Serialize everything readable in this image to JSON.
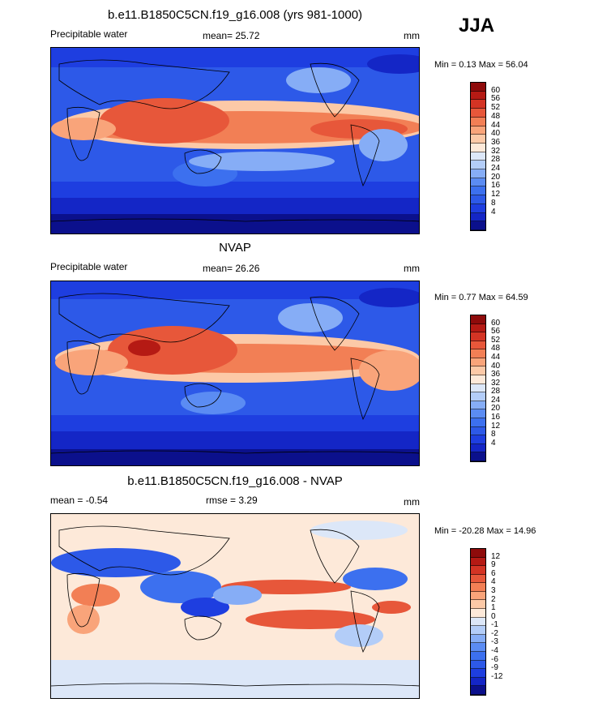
{
  "season": "JJA",
  "colors": {
    "panel1_scale": [
      "#0b108c",
      "#1426c6",
      "#1e3ee0",
      "#2d59e8",
      "#3c70ef",
      "#5b8cf3",
      "#86adf6",
      "#b3cdf8",
      "#dce7f8",
      "#fde9d9",
      "#fcc9a7",
      "#f9a47a",
      "#f27f55",
      "#e7573a",
      "#d43424",
      "#b51a14",
      "#8e0b0b"
    ],
    "panel3_scale": [
      "#0b108c",
      "#1426c6",
      "#1e3ee0",
      "#2d59e8",
      "#3c70ef",
      "#5b8cf3",
      "#86adf6",
      "#b3cdf8",
      "#dce7f8",
      "#fde9d9",
      "#fcc9a7",
      "#f9a47a",
      "#f27f55",
      "#e7573a",
      "#d43424",
      "#b51a14",
      "#8e0b0b"
    ]
  },
  "panels": [
    {
      "title": "b.e11.B1850C5CN.f19_g16.008 (yrs 981-1000)",
      "left_label": "Precipitable water",
      "center_label": "mean=  25.72",
      "units": "mm",
      "minmax": "Min =   0.13 Max =  56.04",
      "ticks": [
        "60",
        "56",
        "52",
        "48",
        "44",
        "40",
        "36",
        "32",
        "28",
        "24",
        "20",
        "16",
        "12",
        "8",
        "4"
      ]
    },
    {
      "title": "NVAP",
      "left_label": "Precipitable water",
      "center_label": "mean=  26.26",
      "units": "mm",
      "minmax": "Min =   0.77 Max =  64.59",
      "ticks": [
        "60",
        "56",
        "52",
        "48",
        "44",
        "40",
        "36",
        "32",
        "28",
        "24",
        "20",
        "16",
        "12",
        "8",
        "4"
      ]
    },
    {
      "title": "b.e11.B1850C5CN.f19_g16.008 - NVAP",
      "left_label": "mean =  -0.54",
      "center_label": "rmse =   3.29",
      "units": "mm",
      "minmax": "Min = -20.28 Max =  14.96",
      "ticks": [
        "12",
        "9",
        "6",
        "4",
        "3",
        "2",
        "1",
        "0",
        "-1",
        "-2",
        "-3",
        "-4",
        "-6",
        "-9",
        "-12"
      ]
    }
  ]
}
